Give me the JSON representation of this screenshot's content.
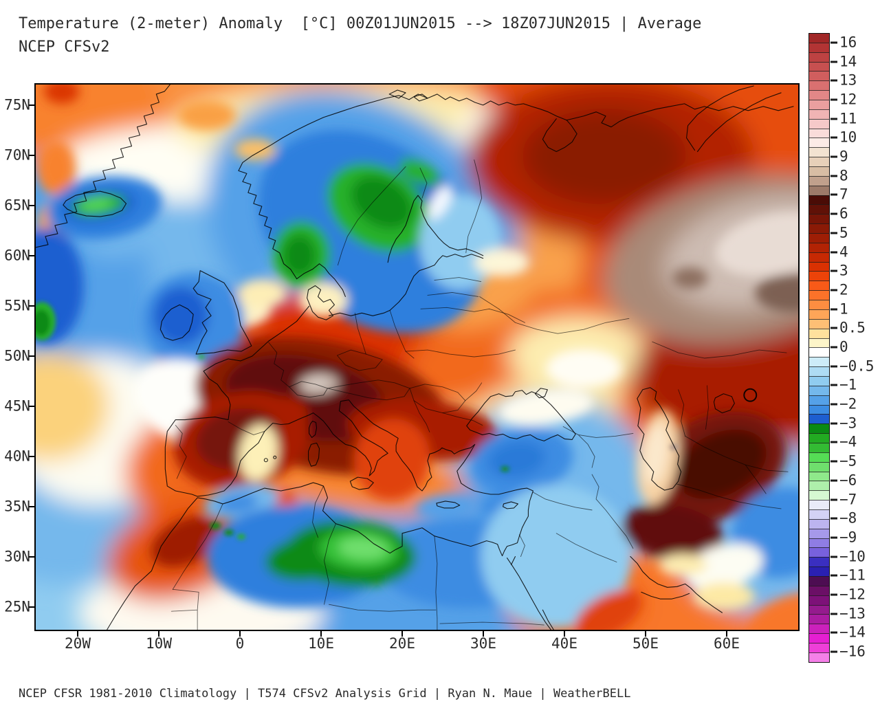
{
  "title": {
    "line1": "Temperature (2-meter) Anomaly  [°C] 00Z01JUN2015 --> 18Z07JUN2015 | Average",
    "line2": "NCEP CFSv2"
  },
  "footer": "NCEP CFSR 1981-2010 Climatology | T574 CFSv2 Analysis Grid | Ryan N. Maue | WeatherBELL",
  "map": {
    "kind": "filled-contour temperature anomaly map",
    "region": "Europe, North Africa, Western Asia, North Atlantic",
    "units": "°C"
  },
  "axes": {
    "lat_labels": [
      "75N",
      "70N",
      "65N",
      "60N",
      "55N",
      "50N",
      "45N",
      "40N",
      "35N",
      "30N",
      "25N"
    ],
    "lon_labels": [
      "20W",
      "10W",
      "0",
      "10E",
      "20E",
      "30E",
      "40E",
      "50E",
      "60E"
    ]
  },
  "colorbar": {
    "units": "°C",
    "tick_labels": [
      "16",
      "14",
      "13",
      "12",
      "11",
      "10",
      "9",
      "8",
      "7",
      "6",
      "5",
      "4",
      "3",
      "2",
      "1",
      "0.5",
      "0",
      "−0.5",
      "−1",
      "−2",
      "−3",
      "−4",
      "−5",
      "−6",
      "−7",
      "−8",
      "−9",
      "−10",
      "−11",
      "−12",
      "−13",
      "−14",
      "−16"
    ],
    "stripe_colors": [
      "#a12727",
      "#b23434",
      "#bd4242",
      "#c75050",
      "#d05e5e",
      "#d97070",
      "#e28787",
      "#ea9f9f",
      "#f1b4b4",
      "#f6c9c9",
      "#fadcda",
      "#fcebe6",
      "#f3e3d1",
      "#e7d0b9",
      "#d8bda4",
      "#c0a08c",
      "#9c7a69",
      "#4a0c06",
      "#601107",
      "#761507",
      "#8a1a06",
      "#9e1e05",
      "#b22304",
      "#c62903",
      "#da3102",
      "#ec4309",
      "#f85a18",
      "#fb7229",
      "#fd8d41",
      "#fea558",
      "#febf75",
      "#fee19d",
      "#fdf5c9",
      "#ffffff",
      "#cdecf8",
      "#aedcf4",
      "#90ccf0",
      "#74b8ec",
      "#55a1e8",
      "#3c8ce2",
      "#1e5ed0",
      "#0a8a14",
      "#22aa22",
      "#33bb33",
      "#55dd55",
      "#6fdf6d",
      "#8fe98b",
      "#aeefab",
      "#d6f8d2",
      "#e9ebf8",
      "#d3d2f5",
      "#bcb4f0",
      "#a699ea",
      "#8f7de4",
      "#7861dd",
      "#3a2fc0",
      "#2a20b2",
      "#4d0d52",
      "#6b0f66",
      "#7d1178",
      "#951b8e",
      "#ab1da2",
      "#cb21bc",
      "#e51fd2",
      "#ee3fd8",
      "#f580e8"
    ]
  }
}
